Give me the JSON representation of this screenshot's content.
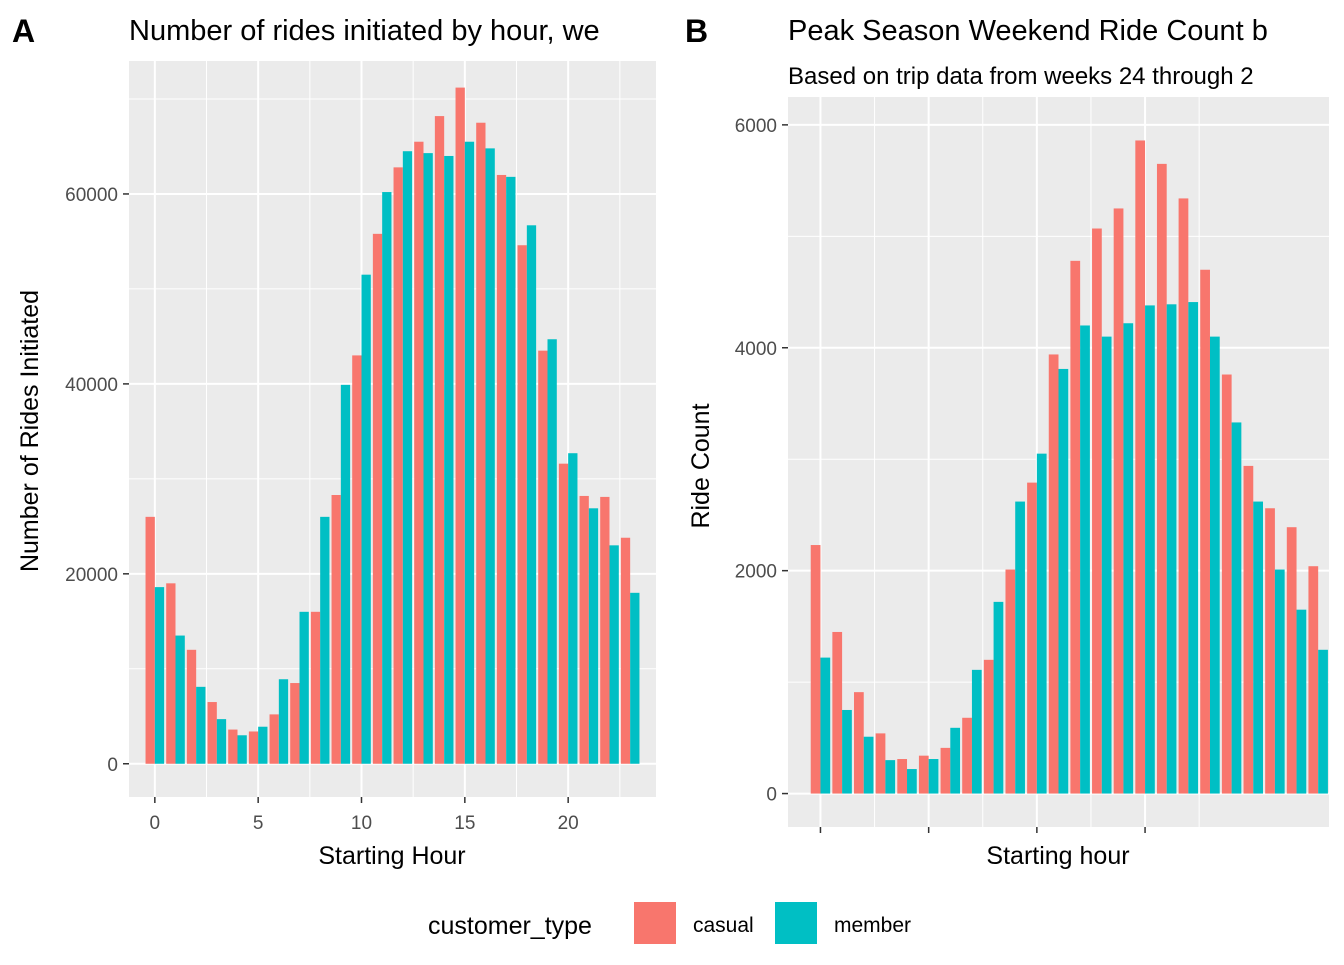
{
  "colors": {
    "casual": "#F8766D",
    "member": "#00BFC4",
    "panel_bg": "#EBEBEB",
    "grid": "#FFFFFF",
    "tick_text": "#4D4D4D"
  },
  "legend": {
    "title": "customer_type",
    "items": [
      "casual",
      "member"
    ]
  },
  "chart_data": [
    {
      "panel_label": "A",
      "type": "bar",
      "title": "Number of rides initiated by hour, we",
      "xlabel": "Starting Hour",
      "ylabel": "Number of Rides Initiated",
      "x": [
        0,
        1,
        2,
        3,
        4,
        5,
        6,
        7,
        8,
        9,
        10,
        11,
        12,
        13,
        14,
        15,
        16,
        17,
        18,
        19,
        20,
        21,
        22,
        23
      ],
      "xlim": [
        -1.25,
        24.25
      ],
      "xticks": [
        0,
        5,
        10,
        15,
        20
      ],
      "xtick_labels": [
        "0",
        "5",
        "10",
        "15",
        "20"
      ],
      "ylim": [
        -3500,
        74000
      ],
      "yticks": [
        0,
        20000,
        40000,
        60000
      ],
      "ytick_labels": [
        "0",
        "20000",
        "40000",
        "60000"
      ],
      "series": [
        {
          "name": "casual",
          "values": [
            26000,
            19000,
            12000,
            6500,
            3600,
            3400,
            5200,
            8500,
            16000,
            28300,
            43000,
            55800,
            62800,
            65500,
            68200,
            71200,
            67500,
            62000,
            54600,
            43500,
            31600,
            28200,
            28100,
            23800
          ]
        },
        {
          "name": "member",
          "values": [
            18600,
            13500,
            8100,
            4700,
            3000,
            3900,
            8900,
            16000,
            26000,
            39900,
            51500,
            60200,
            64500,
            64300,
            64000,
            65500,
            64800,
            61800,
            56700,
            44700,
            32700,
            26900,
            23000,
            18000
          ]
        }
      ]
    },
    {
      "panel_label": "B",
      "type": "bar",
      "title": "Peak Season Weekend Ride Count b",
      "subtitle": "Based on trip data from weeks 24 through 2",
      "xlabel": "Starting hour",
      "ylabel": "Ride Count",
      "x": [
        0,
        1,
        2,
        3,
        4,
        5,
        6,
        7,
        8,
        9,
        10,
        11,
        12,
        13,
        14,
        15,
        16,
        17,
        18,
        19,
        20,
        21,
        22,
        23
      ],
      "xlim": [
        -1.5,
        23.5
      ],
      "xticks": [
        0,
        5,
        10,
        15
      ],
      "xtick_labels": [
        "",
        "",
        "",
        ""
      ],
      "ylim": [
        -300,
        6250
      ],
      "yticks": [
        0,
        2000,
        4000,
        6000
      ],
      "ytick_labels": [
        "0",
        "2000",
        "4000",
        "6000"
      ],
      "series": [
        {
          "name": "casual",
          "values": [
            2230,
            1450,
            910,
            540,
            310,
            340,
            410,
            680,
            1200,
            2010,
            2790,
            3940,
            4780,
            5070,
            5250,
            5860,
            5650,
            5340,
            4700,
            3760,
            2940,
            2560,
            2390,
            2040
          ]
        },
        {
          "name": "member",
          "values": [
            1220,
            750,
            510,
            300,
            220,
            310,
            590,
            1110,
            1720,
            2620,
            3050,
            3810,
            4200,
            4100,
            4220,
            4380,
            4390,
            4410,
            4100,
            3330,
            2620,
            2010,
            1650,
            1290
          ]
        }
      ]
    }
  ]
}
